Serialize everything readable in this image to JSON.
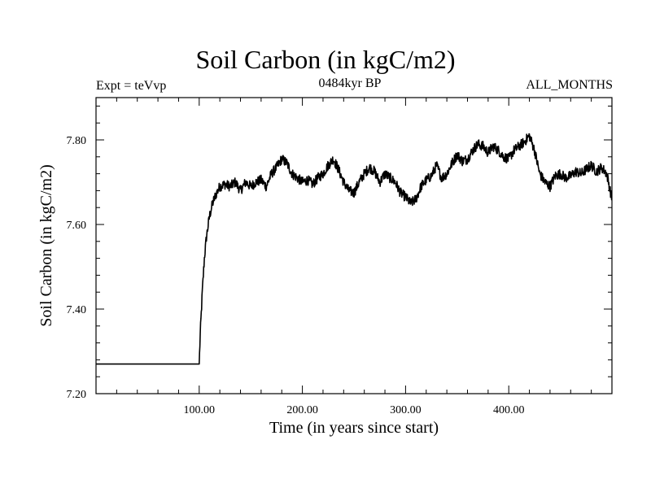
{
  "chart_data": {
    "type": "line",
    "title": "Soil Carbon (in kgC/m2)",
    "subtitle_left": "Expt = teVvp",
    "subtitle_center": "0484kyr BP",
    "subtitle_right": "ALL_MONTHS",
    "xlabel": "Time (in years since start)",
    "ylabel": "Soil Carbon (in kgC/m2)",
    "xlim": [
      0,
      500
    ],
    "ylim": [
      7.2,
      7.9
    ],
    "x_ticks": [
      100,
      200,
      300,
      400
    ],
    "x_tick_labels": [
      "100.00",
      "200.00",
      "300.00",
      "400.00"
    ],
    "y_ticks": [
      7.2,
      7.4,
      7.6,
      7.8
    ],
    "y_tick_labels": [
      "7.20",
      "7.40",
      "7.60",
      "7.80"
    ],
    "series": [
      {
        "name": "Soil Carbon",
        "band_half_width": 0.012,
        "x": [
          0,
          100,
          101,
          103,
          105,
          107,
          110,
          113,
          116,
          120,
          125,
          130,
          135,
          140,
          145,
          150,
          155,
          160,
          165,
          170,
          175,
          180,
          185,
          190,
          195,
          200,
          205,
          210,
          215,
          220,
          225,
          230,
          235,
          240,
          245,
          250,
          255,
          260,
          265,
          270,
          275,
          280,
          285,
          290,
          295,
          300,
          305,
          310,
          315,
          320,
          325,
          330,
          335,
          340,
          345,
          350,
          355,
          360,
          365,
          370,
          375,
          380,
          385,
          390,
          395,
          400,
          405,
          410,
          415,
          420,
          425,
          430,
          435,
          440,
          445,
          450,
          455,
          460,
          465,
          470,
          475,
          480,
          485,
          490,
          495,
          500
        ],
        "values": [
          7.27,
          7.27,
          7.34,
          7.44,
          7.52,
          7.57,
          7.62,
          7.65,
          7.67,
          7.69,
          7.695,
          7.69,
          7.7,
          7.68,
          7.7,
          7.69,
          7.7,
          7.705,
          7.69,
          7.72,
          7.735,
          7.755,
          7.745,
          7.72,
          7.71,
          7.7,
          7.705,
          7.695,
          7.71,
          7.72,
          7.74,
          7.755,
          7.73,
          7.7,
          7.68,
          7.675,
          7.7,
          7.72,
          7.735,
          7.725,
          7.7,
          7.72,
          7.71,
          7.7,
          7.675,
          7.665,
          7.65,
          7.66,
          7.69,
          7.705,
          7.715,
          7.74,
          7.71,
          7.72,
          7.745,
          7.765,
          7.75,
          7.755,
          7.775,
          7.79,
          7.785,
          7.77,
          7.785,
          7.775,
          7.76,
          7.755,
          7.775,
          7.785,
          7.795,
          7.81,
          7.775,
          7.72,
          7.7,
          7.69,
          7.715,
          7.72,
          7.71,
          7.715,
          7.725,
          7.72,
          7.73,
          7.74,
          7.725,
          7.735,
          7.72,
          7.66
        ]
      }
    ]
  }
}
